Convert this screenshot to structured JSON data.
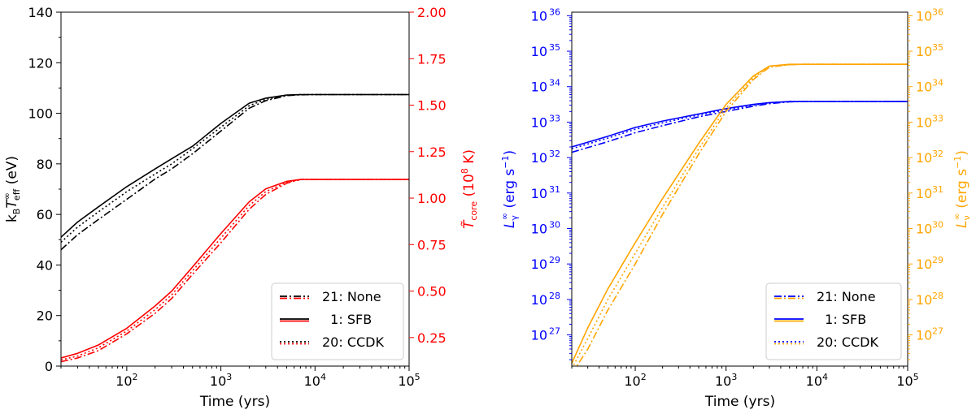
{
  "chart_data": [
    {
      "type": "line",
      "xlabel": "Time (yrs)",
      "xscale": "log",
      "xlim": [
        20,
        100000
      ],
      "xticks": [
        {
          "value": 100,
          "base": "10",
          "exp": "2"
        },
        {
          "value": 1000,
          "base": "10",
          "exp": "3"
        },
        {
          "value": 10000,
          "base": "10",
          "exp": "4"
        },
        {
          "value": 100000,
          "base": "10",
          "exp": "5"
        }
      ],
      "left_axis": {
        "label_main": "k",
        "label_sub1": "B",
        "label_mid": "T",
        "label_sup": "∞",
        "label_sub2": "eff",
        "label_tail": " (eV)",
        "color": "#000000",
        "ylim": [
          0,
          140
        ],
        "yticks": [
          "0",
          "20",
          "40",
          "60",
          "80",
          "100",
          "120",
          "140"
        ]
      },
      "right_axis": {
        "label_main": "T̃",
        "label_sub": "core",
        "label_tail": " (10",
        "label_sup": "8",
        "label_end": " K)",
        "color": "#ff0000",
        "ylim": [
          0.0964,
          2.0
        ],
        "yticks": [
          "0.25",
          "0.50",
          "0.75",
          "1.00",
          "1.25",
          "1.50",
          "1.75",
          "2.00"
        ]
      },
      "legend": {
        "position": "bottom-right",
        "entries": [
          {
            "label": "21: None",
            "dash": "dashdot"
          },
          {
            "label": "  1: SFB",
            "dash": "solid"
          },
          {
            "label": "20: CCDK",
            "dash": "dotted"
          }
        ],
        "colors": [
          "#000000",
          "#ff0000"
        ]
      },
      "series": [
        {
          "name": "21: None",
          "axis": "left",
          "color": "#000000",
          "dash": "dashdot",
          "x": [
            20,
            30,
            50,
            100,
            200,
            300,
            500,
            1000,
            2000,
            3000,
            5000,
            7000,
            10000,
            100000
          ],
          "y": [
            46,
            52,
            58,
            66,
            74,
            78,
            84,
            93,
            102,
            105,
            107,
            107.3,
            107.4,
            107.4
          ]
        },
        {
          "name": "1: SFB",
          "axis": "left",
          "color": "#000000",
          "dash": "solid",
          "x": [
            20,
            30,
            50,
            100,
            200,
            300,
            500,
            1000,
            2000,
            3000,
            5000,
            7000,
            10000,
            100000
          ],
          "y": [
            51,
            57,
            63,
            71,
            78,
            82,
            87,
            96,
            104,
            106,
            107.2,
            107.4,
            107.4,
            107.4
          ]
        },
        {
          "name": "20: CCDK",
          "axis": "left",
          "color": "#000000",
          "dash": "dotted",
          "x": [
            20,
            30,
            50,
            100,
            200,
            300,
            500,
            1000,
            2000,
            3000,
            5000,
            7000,
            10000,
            100000
          ],
          "y": [
            49,
            55,
            61,
            69,
            76,
            80,
            86,
            94.5,
            103,
            105.5,
            107.1,
            107.4,
            107.4,
            107.4
          ]
        },
        {
          "name": "21: None",
          "axis": "right",
          "color": "#ff0000",
          "dash": "dashdot",
          "x": [
            20,
            30,
            50,
            100,
            200,
            300,
            500,
            1000,
            2000,
            3000,
            5000,
            7000,
            10000,
            100000
          ],
          "y": [
            0.12,
            0.14,
            0.18,
            0.27,
            0.38,
            0.46,
            0.59,
            0.76,
            0.94,
            1.02,
            1.08,
            1.1,
            1.1,
            1.1
          ]
        },
        {
          "name": "1: SFB",
          "axis": "right",
          "color": "#ff0000",
          "dash": "solid",
          "x": [
            20,
            30,
            50,
            100,
            200,
            300,
            500,
            1000,
            2000,
            3000,
            5000,
            7000,
            10000,
            100000
          ],
          "y": [
            0.14,
            0.165,
            0.21,
            0.3,
            0.42,
            0.5,
            0.63,
            0.81,
            0.98,
            1.05,
            1.09,
            1.1,
            1.1,
            1.1
          ]
        },
        {
          "name": "20: CCDK",
          "axis": "right",
          "color": "#ff0000",
          "dash": "dotted",
          "x": [
            20,
            30,
            50,
            100,
            200,
            300,
            500,
            1000,
            2000,
            3000,
            5000,
            7000,
            10000,
            100000
          ],
          "y": [
            0.13,
            0.15,
            0.195,
            0.285,
            0.4,
            0.48,
            0.61,
            0.785,
            0.96,
            1.035,
            1.085,
            1.1,
            1.1,
            1.1
          ]
        }
      ]
    },
    {
      "type": "line",
      "xlabel": "Time (yrs)",
      "xscale": "log",
      "xlim": [
        20,
        100000
      ],
      "xticks": [
        {
          "value": 100,
          "base": "10",
          "exp": "2"
        },
        {
          "value": 1000,
          "base": "10",
          "exp": "3"
        },
        {
          "value": 10000,
          "base": "10",
          "exp": "4"
        },
        {
          "value": 100000,
          "base": "10",
          "exp": "5"
        }
      ],
      "left_axis": {
        "label_main": "L",
        "label_sub": "γ",
        "label_sup": "∞",
        "label_tail": " (erg s",
        "label_sup2": "−1",
        "label_end": ")",
        "color": "#0000ff",
        "yscale": "log",
        "ylim_exp": [
          26.12,
          36.1
        ],
        "yticks": [
          {
            "base": "10",
            "exp": "27"
          },
          {
            "base": "10",
            "exp": "28"
          },
          {
            "base": "10",
            "exp": "29"
          },
          {
            "base": "10",
            "exp": "30"
          },
          {
            "base": "10",
            "exp": "31"
          },
          {
            "base": "10",
            "exp": "32"
          },
          {
            "base": "10",
            "exp": "33"
          },
          {
            "base": "10",
            "exp": "34"
          },
          {
            "base": "10",
            "exp": "35"
          },
          {
            "base": "10",
            "exp": "36"
          }
        ]
      },
      "right_axis": {
        "label_main": "L",
        "label_sub": "ν",
        "label_sup": "∞",
        "label_tail": " (erg s",
        "label_sup2": "−1",
        "label_end": ")",
        "color": "#ffa500",
        "yscale": "log",
        "ylim_exp": [
          26.12,
          36.1
        ],
        "yticks": [
          {
            "base": "10",
            "exp": "27"
          },
          {
            "base": "10",
            "exp": "28"
          },
          {
            "base": "10",
            "exp": "29"
          },
          {
            "base": "10",
            "exp": "30"
          },
          {
            "base": "10",
            "exp": "31"
          },
          {
            "base": "10",
            "exp": "32"
          },
          {
            "base": "10",
            "exp": "33"
          },
          {
            "base": "10",
            "exp": "34"
          },
          {
            "base": "10",
            "exp": "35"
          },
          {
            "base": "10",
            "exp": "36"
          }
        ]
      },
      "legend": {
        "position": "bottom-right",
        "entries": [
          {
            "label": "21: None",
            "dash": "dashdot"
          },
          {
            "label": "  1: SFB",
            "dash": "solid"
          },
          {
            "label": "20: CCDK",
            "dash": "dotted"
          }
        ],
        "colors": [
          "#0000ff",
          "#ffa500"
        ]
      },
      "series": [
        {
          "name": "21: None",
          "axis": "left",
          "color": "#0000ff",
          "dash": "dashdot",
          "x": [
            20,
            50,
            100,
            200,
            500,
            1000,
            2000,
            3000,
            5000,
            7000,
            10000,
            100000
          ],
          "y": [
            32.15,
            32.45,
            32.7,
            32.9,
            33.15,
            33.3,
            33.45,
            33.52,
            33.57,
            33.58,
            33.58,
            33.58
          ]
        },
        {
          "name": "1: SFB",
          "axis": "left",
          "color": "#0000ff",
          "dash": "solid",
          "x": [
            20,
            50,
            100,
            200,
            500,
            1000,
            2000,
            3000,
            5000,
            7000,
            10000,
            100000
          ],
          "y": [
            32.3,
            32.6,
            32.85,
            33.03,
            33.23,
            33.38,
            33.5,
            33.55,
            33.58,
            33.58,
            33.58,
            33.58
          ]
        },
        {
          "name": "20: CCDK",
          "axis": "left",
          "color": "#0000ff",
          "dash": "dotted",
          "x": [
            20,
            50,
            100,
            200,
            500,
            1000,
            2000,
            3000,
            5000,
            7000,
            10000,
            100000
          ],
          "y": [
            32.25,
            32.55,
            32.8,
            32.98,
            33.2,
            33.35,
            33.48,
            33.54,
            33.58,
            33.58,
            33.58,
            33.58
          ]
        },
        {
          "name": "21: None",
          "axis": "right",
          "color": "#ffa500",
          "dash": "dashdot",
          "x": [
            20,
            30,
            50,
            100,
            200,
            500,
            1000,
            2000,
            3000,
            5000,
            7000,
            10000,
            100000
          ],
          "y": [
            25.9,
            26.6,
            27.7,
            29.0,
            30.4,
            32.1,
            33.3,
            34.2,
            34.55,
            34.62,
            34.63,
            34.63,
            34.63
          ]
        },
        {
          "name": "1: SFB",
          "axis": "right",
          "color": "#ffa500",
          "dash": "solid",
          "x": [
            20,
            30,
            50,
            100,
            200,
            500,
            1000,
            2000,
            3000,
            5000,
            7000,
            10000,
            100000
          ],
          "y": [
            26.2,
            27.2,
            28.3,
            29.6,
            30.85,
            32.4,
            33.5,
            34.3,
            34.58,
            34.63,
            34.63,
            34.63,
            34.63
          ]
        },
        {
          "name": "20: CCDK",
          "axis": "right",
          "color": "#ffa500",
          "dash": "dotted",
          "x": [
            20,
            30,
            50,
            100,
            200,
            500,
            1000,
            2000,
            3000,
            5000,
            7000,
            10000,
            100000
          ],
          "y": [
            26.05,
            26.9,
            28.0,
            29.3,
            30.6,
            32.25,
            33.4,
            34.25,
            34.57,
            34.62,
            34.63,
            34.63,
            34.63
          ]
        }
      ]
    }
  ]
}
